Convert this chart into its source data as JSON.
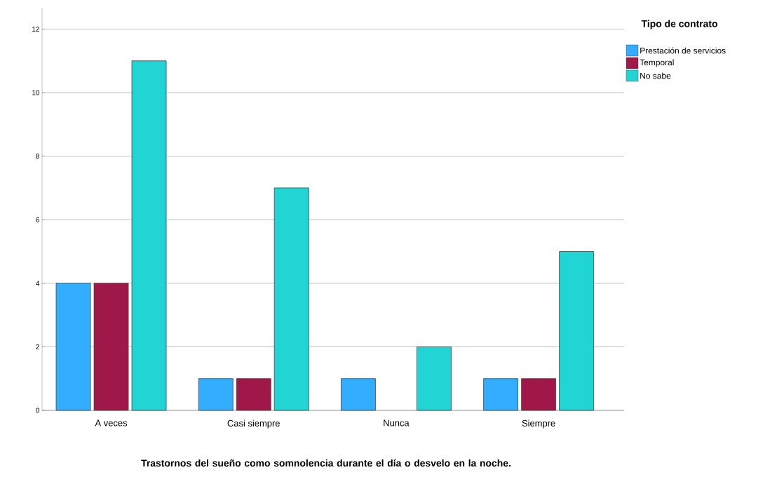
{
  "chart_data": {
    "type": "bar",
    "xlabel": "Trastornos del sueño como somnolencia durante el día o desvelo en la noche.",
    "legend_title": "Tipo de contrato",
    "categories": [
      "A veces",
      "Casi siempre",
      "Nunca",
      "Siempre"
    ],
    "series": [
      {
        "name": "Prestación de servicios",
        "color": "#33adff",
        "values": [
          4,
          1,
          1,
          1
        ]
      },
      {
        "name": "Temporal",
        "color": "#a0174a",
        "values": [
          4,
          1,
          null,
          1
        ]
      },
      {
        "name": "No sabe",
        "color": "#22d5d5",
        "values": [
          11,
          7,
          2,
          5
        ]
      }
    ],
    "ylim": [
      0,
      12.65
    ],
    "yticks": [
      0,
      2,
      4,
      6,
      8,
      10,
      12
    ],
    "grid": "y",
    "legend": "top right"
  }
}
